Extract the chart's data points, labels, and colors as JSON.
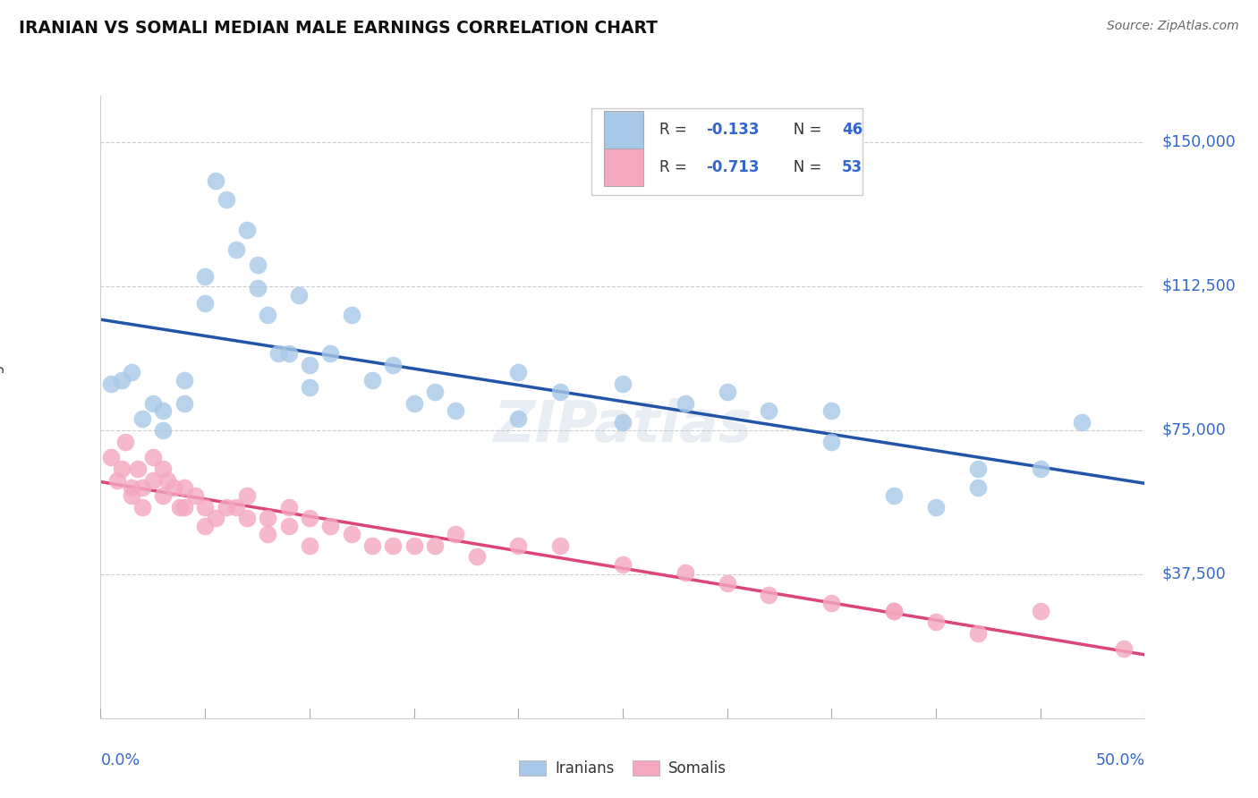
{
  "title": "IRANIAN VS SOMALI MEDIAN MALE EARNINGS CORRELATION CHART",
  "source": "Source: ZipAtlas.com",
  "ylabel": "Median Male Earnings",
  "ylim": [
    0,
    162000
  ],
  "xlim": [
    0.0,
    0.5
  ],
  "scatter_color_iranian": "#a8c8e8",
  "scatter_color_somali": "#f4a8c0",
  "line_color_iranian": "#2255aa",
  "line_color_somali": "#dd4477",
  "background_color": "#ffffff",
  "text_color_blue": "#3366cc",
  "text_color_dark": "#333333",
  "grid_color": "#cccccc",
  "yticks": [
    37500,
    75000,
    112500,
    150000
  ],
  "ytick_labels": [
    "$37,500",
    "$75,000",
    "$112,500",
    "$150,000"
  ],
  "iranian_R": "-0.133",
  "iranian_N": "46",
  "somali_R": "-0.713",
  "somali_N": "53",
  "iranians_x": [
    0.005,
    0.01,
    0.015,
    0.02,
    0.025,
    0.03,
    0.03,
    0.04,
    0.04,
    0.05,
    0.05,
    0.055,
    0.06,
    0.065,
    0.07,
    0.075,
    0.075,
    0.08,
    0.085,
    0.09,
    0.095,
    0.1,
    0.1,
    0.11,
    0.12,
    0.13,
    0.14,
    0.15,
    0.16,
    0.17,
    0.2,
    0.22,
    0.25,
    0.28,
    0.3,
    0.32,
    0.35,
    0.38,
    0.4,
    0.42,
    0.45,
    0.47,
    0.2,
    0.25,
    0.35,
    0.42
  ],
  "iranians_y": [
    87000,
    88000,
    90000,
    78000,
    82000,
    80000,
    75000,
    88000,
    82000,
    115000,
    108000,
    140000,
    135000,
    122000,
    127000,
    118000,
    112000,
    105000,
    95000,
    95000,
    110000,
    92000,
    86000,
    95000,
    105000,
    88000,
    92000,
    82000,
    85000,
    80000,
    90000,
    85000,
    87000,
    82000,
    85000,
    80000,
    80000,
    58000,
    55000,
    65000,
    65000,
    77000,
    78000,
    77000,
    72000,
    60000
  ],
  "somalis_x": [
    0.005,
    0.008,
    0.01,
    0.012,
    0.015,
    0.015,
    0.018,
    0.02,
    0.02,
    0.025,
    0.025,
    0.03,
    0.03,
    0.032,
    0.035,
    0.038,
    0.04,
    0.04,
    0.045,
    0.05,
    0.05,
    0.055,
    0.06,
    0.065,
    0.07,
    0.07,
    0.08,
    0.08,
    0.09,
    0.09,
    0.1,
    0.1,
    0.11,
    0.12,
    0.13,
    0.14,
    0.15,
    0.16,
    0.17,
    0.18,
    0.2,
    0.22,
    0.25,
    0.28,
    0.3,
    0.32,
    0.35,
    0.38,
    0.38,
    0.4,
    0.42,
    0.45,
    0.49
  ],
  "somalis_y": [
    68000,
    62000,
    65000,
    72000,
    60000,
    58000,
    65000,
    60000,
    55000,
    68000,
    62000,
    65000,
    58000,
    62000,
    60000,
    55000,
    60000,
    55000,
    58000,
    55000,
    50000,
    52000,
    55000,
    55000,
    52000,
    58000,
    52000,
    48000,
    55000,
    50000,
    52000,
    45000,
    50000,
    48000,
    45000,
    45000,
    45000,
    45000,
    48000,
    42000,
    45000,
    45000,
    40000,
    38000,
    35000,
    32000,
    30000,
    28000,
    28000,
    25000,
    22000,
    28000,
    18000
  ]
}
